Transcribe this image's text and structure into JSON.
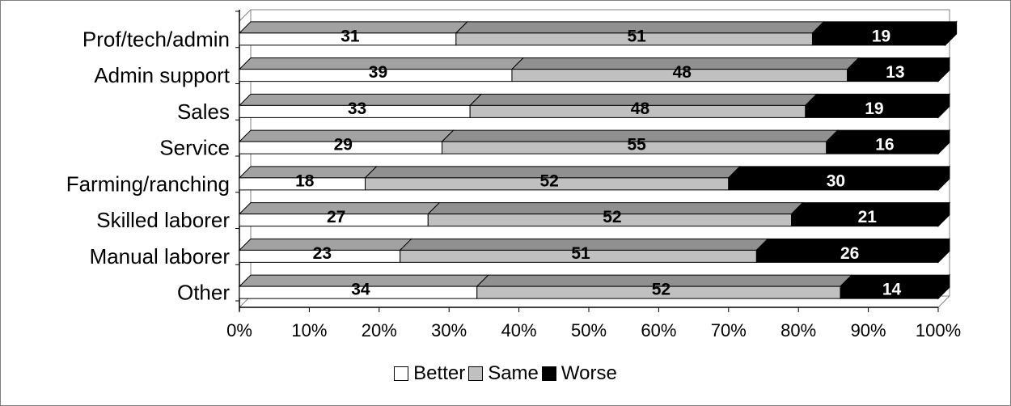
{
  "chart_data": {
    "type": "bar",
    "orientation": "horizontal",
    "stacked": "percent",
    "categories": [
      "Prof/tech/admin",
      "Admin support",
      "Sales",
      "Service",
      "Farming/ranching",
      "Skilled laborer",
      "Manual laborer",
      "Other"
    ],
    "series": [
      {
        "name": "Better",
        "values": [
          31,
          39,
          33,
          29,
          18,
          27,
          23,
          34
        ],
        "color": "#ffffff",
        "label_color": "#000000"
      },
      {
        "name": "Same",
        "values": [
          51,
          48,
          48,
          55,
          52,
          52,
          51,
          52
        ],
        "color": "#c0c0c0",
        "label_color": "#000000"
      },
      {
        "name": "Worse",
        "values": [
          19,
          13,
          19,
          16,
          30,
          21,
          26,
          14
        ],
        "color": "#000000",
        "label_color": "#ffffff"
      }
    ],
    "xlim": [
      0,
      100
    ],
    "x_ticks": [
      "0%",
      "10%",
      "20%",
      "30%",
      "40%",
      "50%",
      "60%",
      "70%",
      "80%",
      "90%",
      "100%"
    ],
    "grid": false,
    "legend_position": "bottom",
    "style": "3d"
  }
}
